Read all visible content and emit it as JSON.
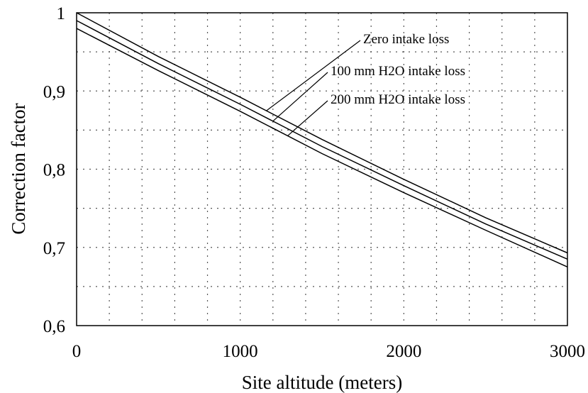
{
  "chart_data": {
    "type": "line",
    "xlabel": "Site altitude  (meters)",
    "ylabel": "Correction factor",
    "xlim": [
      0,
      3000
    ],
    "ylim": [
      0.6,
      1.0
    ],
    "x_tick_values": [
      0,
      1000,
      2000,
      3000
    ],
    "x_tick_labels": [
      "0",
      "1000",
      "2000",
      "3000"
    ],
    "y_tick_values": [
      0.6,
      0.7,
      0.8,
      0.9,
      1.0
    ],
    "y_tick_labels": [
      "0,6",
      "0,7",
      "0,8",
      "0,9",
      "1"
    ],
    "x_grid": [
      200,
      400,
      600,
      800,
      1000,
      1200,
      1400,
      1600,
      1800,
      2000,
      2200,
      2400,
      2600,
      2800
    ],
    "y_grid": [
      0.65,
      0.7,
      0.75,
      0.8,
      0.85,
      0.9,
      0.95
    ],
    "grid": true,
    "legend": "none",
    "series": [
      {
        "name": "Zero intake loss",
        "x": [
          0,
          500,
          1000,
          1500,
          2000,
          2500,
          3000
        ],
        "y": [
          1.0,
          0.944,
          0.892,
          0.838,
          0.787,
          0.738,
          0.693
        ]
      },
      {
        "name": "100 mm H2O intake loss",
        "x": [
          0,
          500,
          1000,
          1500,
          2000,
          2500,
          3000
        ],
        "y": [
          0.99,
          0.935,
          0.883,
          0.829,
          0.779,
          0.73,
          0.685
        ]
      },
      {
        "name": "200 mm H2O intake loss",
        "x": [
          0,
          500,
          1000,
          1500,
          2000,
          2500,
          3000
        ],
        "y": [
          0.98,
          0.926,
          0.874,
          0.82,
          0.77,
          0.722,
          0.675
        ]
      }
    ],
    "annotations": [
      {
        "text": "Zero intake loss",
        "series": 0,
        "x": 1160
      },
      {
        "text": "100 mm H2O intake loss",
        "series": 1,
        "x": 1200
      },
      {
        "text": "200 mm H2O intake loss",
        "series": 2,
        "x": 1290
      }
    ]
  }
}
